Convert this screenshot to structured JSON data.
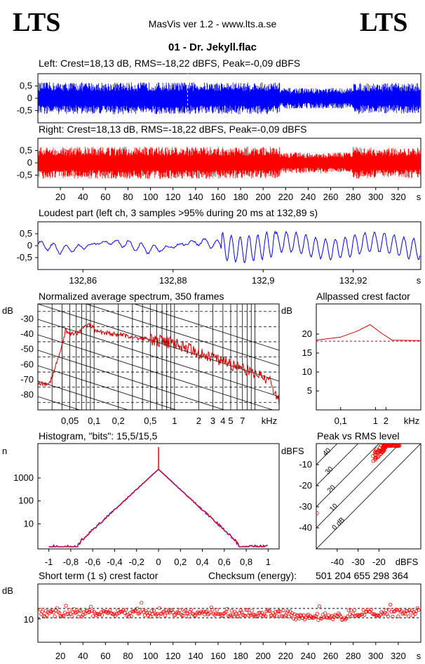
{
  "header": {
    "logo_left": "LTS",
    "logo_right": "LTS",
    "app_title": "MasVis ver 1.2 - www.lts.a.se",
    "file_title": "01 - Dr. Jekyll.flac"
  },
  "colors": {
    "left": "#0000ff",
    "right": "#ff0000",
    "spectrum": "#cc0000",
    "grid": "#000000"
  },
  "chart_data": [
    {
      "id": "left-waveform",
      "type": "area",
      "title": "Left: Crest=18,13 dB, RMS=-18,22 dBFS, Peak=-0,09 dBFS",
      "ylim": [
        -1,
        1
      ],
      "yticks": [
        "0,5",
        "0",
        "-0,5"
      ],
      "marker_time": 132.89,
      "xlim": [
        0,
        340
      ]
    },
    {
      "id": "right-waveform",
      "type": "area",
      "title": "Right: Crest=18,13 dB, RMS=-18,22 dBFS, Peak=-0,09 dBFS",
      "ylim": [
        -1,
        1
      ],
      "yticks": [
        "0,5",
        "0",
        "-0,5"
      ],
      "xlim": [
        0,
        340
      ],
      "xticks": [
        "20",
        "40",
        "60",
        "80",
        "100",
        "120",
        "140",
        "160",
        "180",
        "200",
        "220",
        "240",
        "260",
        "280",
        "300",
        "320"
      ],
      "xunit": "s"
    },
    {
      "id": "loudest-part",
      "type": "line",
      "title": "Loudest part (left  ch, 3 samples >95% during 20 ms at 132,89 s)",
      "ylim": [
        -1,
        1
      ],
      "yticks": [
        "0,5",
        "0",
        "-0,5"
      ],
      "xticks": [
        "132,86",
        "132,88",
        "132,9",
        "132,92"
      ],
      "xlim": [
        132.85,
        132.935
      ],
      "xunit": "s"
    },
    {
      "id": "avg-spectrum",
      "type": "line",
      "title": "Normalized average spectrum, 350 frames",
      "ylabel": "dB",
      "yticks": [
        "-30",
        "-40",
        "-50",
        "-60",
        "-70",
        "-80"
      ],
      "xticks": [
        "0,05",
        "0,1",
        "0,2",
        "0,5",
        "1",
        "2",
        "3",
        "4",
        "5",
        "7"
      ],
      "xunit": "kHz",
      "ylim": [
        -90,
        -20
      ],
      "xlim": [
        0.02,
        20
      ]
    },
    {
      "id": "allpassed-crest",
      "type": "line",
      "title": "Allpassed crest factor",
      "ylabel": "dB",
      "yticks": [
        "20",
        "15",
        "10",
        "5"
      ],
      "xticks": [
        "0,1",
        "1",
        "2"
      ],
      "xunit": "kHz",
      "ylim": [
        0,
        25
      ],
      "xlim": [
        0.02,
        20
      ],
      "x": [
        0.02,
        0.1,
        0.3,
        0.7,
        1.5,
        3,
        20
      ],
      "values": [
        18.4,
        19.2,
        20.8,
        22.5,
        20.2,
        18.4,
        18.3
      ],
      "reference": 18.13
    },
    {
      "id": "histogram",
      "type": "line",
      "title": "Histogram, \"bits\": 15,5/15,5",
      "ylabel": "n",
      "yticks": [
        "1000",
        "100",
        "10"
      ],
      "xticks": [
        "-1",
        "-0,8",
        "-0,6",
        "-0,4",
        "-0,2",
        "0",
        "0,2",
        "0,4",
        "0,6",
        "0,8",
        "1"
      ],
      "xlim": [
        -1.1,
        1.1
      ],
      "x": [
        -1.0,
        -0.8,
        -0.6,
        -0.4,
        -0.2,
        -0.05,
        0,
        0.05,
        0.2,
        0.4,
        0.6,
        0.8,
        1.0
      ],
      "values": [
        1,
        3,
        20,
        120,
        700,
        1900,
        2400,
        1900,
        700,
        120,
        20,
        3,
        1
      ]
    },
    {
      "id": "peak-vs-rms",
      "type": "scatter",
      "title": "Peak vs RMS level",
      "ylabel": "dBFS",
      "xunit": "dBFS",
      "yticks": [
        "-10",
        "-20",
        "-30",
        "-40"
      ],
      "xticks": [
        "-40",
        "-30",
        "-20"
      ],
      "diagonal_labels": [
        "40",
        "30",
        "20",
        "10",
        "0 dB"
      ],
      "xlim": [
        -50,
        0
      ],
      "ylim": [
        -50,
        0
      ]
    },
    {
      "id": "short-term-crest",
      "type": "scatter",
      "title": "Short term (1 s) crest factor",
      "ylabel": "dB",
      "yticks": [
        "10"
      ],
      "xticks": [
        "20",
        "40",
        "60",
        "80",
        "100",
        "120",
        "140",
        "160",
        "180",
        "200",
        "220",
        "240",
        "260",
        "280",
        "300",
        "320"
      ],
      "xunit": "s",
      "xlim": [
        0,
        340
      ],
      "ylim": [
        0,
        25
      ],
      "reference_lines": [
        14.5,
        10.5
      ],
      "checksum_label": "Checksum (energy):",
      "checksum_value": "501 204 655 298 364"
    }
  ]
}
